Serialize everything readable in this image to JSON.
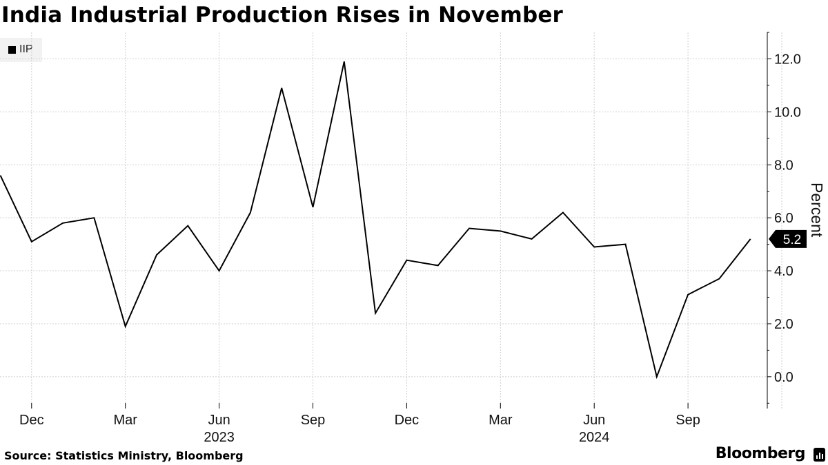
{
  "title": "India Industrial Production Rises in November",
  "legend": {
    "label": "IIP",
    "color": "#000000"
  },
  "source": "Source: Statistics Ministry, Bloomberg",
  "brand": "Bloomberg",
  "chart_data": {
    "type": "line",
    "title": "India Industrial Production Rises in November",
    "ylabel": "Percent",
    "ylim": [
      -1.2,
      13.0
    ],
    "y_ticks": [
      "0.0",
      "2.0",
      "4.0",
      "6.0",
      "8.0",
      "10.0",
      "12.0"
    ],
    "x_ticks": [
      {
        "date": "2022-12",
        "label": "Dec",
        "year": ""
      },
      {
        "date": "2023-03",
        "label": "Mar",
        "year": ""
      },
      {
        "date": "2023-06",
        "label": "Jun",
        "year": "2023"
      },
      {
        "date": "2023-09",
        "label": "Sep",
        "year": ""
      },
      {
        "date": "2023-12",
        "label": "Dec",
        "year": ""
      },
      {
        "date": "2024-03",
        "label": "Mar",
        "year": ""
      },
      {
        "date": "2024-06",
        "label": "Jun",
        "year": "2024"
      },
      {
        "date": "2024-09",
        "label": "Sep",
        "year": ""
      }
    ],
    "grid": true,
    "legend_position": "top-left",
    "end_label": "5.2",
    "series": [
      {
        "name": "IIP",
        "color": "#000000",
        "points": [
          {
            "x": "2022-11",
            "y": 7.6
          },
          {
            "x": "2022-12",
            "y": 5.1
          },
          {
            "x": "2023-01",
            "y": 5.8
          },
          {
            "x": "2023-02",
            "y": 6.0
          },
          {
            "x": "2023-03",
            "y": 1.9
          },
          {
            "x": "2023-04",
            "y": 4.6
          },
          {
            "x": "2023-05",
            "y": 5.7
          },
          {
            "x": "2023-06",
            "y": 4.0
          },
          {
            "x": "2023-07",
            "y": 6.2
          },
          {
            "x": "2023-08",
            "y": 10.9
          },
          {
            "x": "2023-09",
            "y": 6.4
          },
          {
            "x": "2023-10",
            "y": 11.9
          },
          {
            "x": "2023-11",
            "y": 2.4
          },
          {
            "x": "2023-12",
            "y": 4.4
          },
          {
            "x": "2024-01",
            "y": 4.2
          },
          {
            "x": "2024-02",
            "y": 5.6
          },
          {
            "x": "2024-03",
            "y": 5.5
          },
          {
            "x": "2024-04",
            "y": 5.2
          },
          {
            "x": "2024-05",
            "y": 6.2
          },
          {
            "x": "2024-06",
            "y": 4.9
          },
          {
            "x": "2024-07",
            "y": 5.0
          },
          {
            "x": "2024-08",
            "y": 0.0
          },
          {
            "x": "2024-09",
            "y": 3.1
          },
          {
            "x": "2024-10",
            "y": 3.7
          },
          {
            "x": "2024-11",
            "y": 5.2
          }
        ]
      }
    ]
  }
}
